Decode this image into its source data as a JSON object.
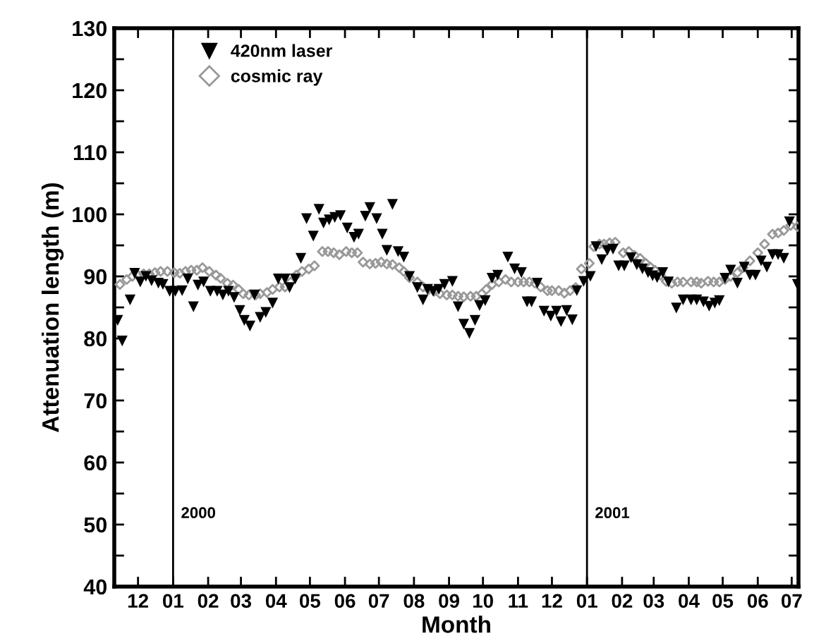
{
  "chart_data": {
    "type": "scatter",
    "xlabel": "Month",
    "ylabel": "Attenuation length (m)",
    "xlim": [
      "1999-11-10",
      "2001-07-07"
    ],
    "ylim": [
      40,
      130
    ],
    "xticks": [
      {
        "value": "1999-12-01",
        "label": "12"
      },
      {
        "value": "2000-01-01",
        "label": "01"
      },
      {
        "value": "2000-02-01",
        "label": "02"
      },
      {
        "value": "2000-03-01",
        "label": "03"
      },
      {
        "value": "2000-04-01",
        "label": "04"
      },
      {
        "value": "2000-05-01",
        "label": "05"
      },
      {
        "value": "2000-06-01",
        "label": "06"
      },
      {
        "value": "2000-07-01",
        "label": "07"
      },
      {
        "value": "2000-08-01",
        "label": "08"
      },
      {
        "value": "2000-09-01",
        "label": "09"
      },
      {
        "value": "2000-10-01",
        "label": "10"
      },
      {
        "value": "2000-11-01",
        "label": "11"
      },
      {
        "value": "2000-12-01",
        "label": "12"
      },
      {
        "value": "2001-01-01",
        "label": "01"
      },
      {
        "value": "2001-02-01",
        "label": "02"
      },
      {
        "value": "2001-03-01",
        "label": "03"
      },
      {
        "value": "2001-04-01",
        "label": "04"
      },
      {
        "value": "2001-05-01",
        "label": "05"
      },
      {
        "value": "2001-06-01",
        "label": "06"
      },
      {
        "value": "2001-07-01",
        "label": "07"
      }
    ],
    "yticks": [
      40,
      {
        "value": 45,
        "label": null
      },
      50,
      {
        "value": 55,
        "label": null
      },
      60,
      {
        "value": 65,
        "label": null
      },
      70,
      {
        "value": 75,
        "label": null
      },
      80,
      {
        "value": 85,
        "label": null
      },
      90,
      {
        "value": 95,
        "label": null
      },
      100,
      {
        "value": 105,
        "label": null
      },
      110,
      {
        "value": 115,
        "label": null
      },
      120,
      {
        "value": 125,
        "label": null
      },
      130
    ],
    "grid": false,
    "legend": "top left",
    "ref_lines": [
      {
        "axis": "x",
        "value": "2000-01-01",
        "label": "2000",
        "color": "#000000"
      },
      {
        "axis": "x",
        "value": "2001-01-01",
        "label": "2001",
        "color": "#000000"
      }
    ],
    "series": [
      {
        "name": "420nm laser",
        "color": "#000000",
        "marker": "triangle",
        "x": [
          "1999-11-13",
          "1999-11-17",
          "1999-11-24",
          "1999-11-28",
          "1999-12-03",
          "1999-12-08",
          "1999-12-13",
          "1999-12-19",
          "1999-12-23",
          "1999-12-29",
          "2000-01-03",
          "2000-01-09",
          "2000-01-14",
          "2000-01-19",
          "2000-01-23",
          "2000-01-28",
          "2000-02-03",
          "2000-02-09",
          "2000-02-14",
          "2000-02-19",
          "2000-02-24",
          "2000-02-29",
          "2000-03-04",
          "2000-03-09",
          "2000-03-13",
          "2000-03-18",
          "2000-03-23",
          "2000-03-29",
          "2000-04-03",
          "2000-04-09",
          "2000-04-13",
          "2000-04-18",
          "2000-04-23",
          "2000-04-28",
          "2000-05-04",
          "2000-05-09",
          "2000-05-13",
          "2000-05-18",
          "2000-05-23",
          "2000-05-28",
          "2000-06-03",
          "2000-06-09",
          "2000-06-13",
          "2000-06-19",
          "2000-06-23",
          "2000-06-29",
          "2000-07-04",
          "2000-07-08",
          "2000-07-13",
          "2000-07-18",
          "2000-07-23",
          "2000-07-28",
          "2000-08-04",
          "2000-08-09",
          "2000-08-13",
          "2000-08-18",
          "2000-08-23",
          "2000-08-28",
          "2000-09-04",
          "2000-09-09",
          "2000-09-14",
          "2000-09-19",
          "2000-09-24",
          "2000-09-28",
          "2000-10-03",
          "2000-10-09",
          "2000-10-14",
          "2000-10-23",
          "2000-10-29",
          "2000-11-04",
          "2000-11-09",
          "2000-11-13",
          "2000-11-18",
          "2000-11-24",
          "2000-11-30",
          "2000-12-05",
          "2000-12-09",
          "2000-12-14",
          "2000-12-19",
          "2000-12-23",
          "2000-12-29",
          "2001-01-04",
          "2001-01-09",
          "2001-01-14",
          "2001-01-19",
          "2001-01-24",
          "2001-01-29",
          "2001-02-03",
          "2001-02-09",
          "2001-02-14",
          "2001-02-19",
          "2001-02-24",
          "2001-02-28",
          "2001-03-04",
          "2001-03-09",
          "2001-03-14",
          "2001-03-21",
          "2001-03-27",
          "2001-04-03",
          "2001-04-08",
          "2001-04-14",
          "2001-04-19",
          "2001-04-24",
          "2001-04-28",
          "2001-05-03",
          "2001-05-08",
          "2001-05-14",
          "2001-05-20",
          "2001-05-25",
          "2001-05-30",
          "2001-06-04",
          "2001-06-09",
          "2001-06-14",
          "2001-06-19",
          "2001-06-24",
          "2001-06-29",
          "2001-07-06"
        ],
        "values": [
          82.9,
          79.6,
          86.2,
          90.5,
          89.1,
          90.0,
          89.3,
          88.9,
          88.7,
          87.6,
          87.6,
          87.7,
          89.6,
          85.1,
          88.6,
          89.1,
          87.6,
          87.6,
          87.0,
          87.6,
          86.6,
          84.5,
          82.9,
          82.0,
          87.0,
          83.4,
          84.2,
          85.7,
          89.6,
          89.6,
          88.2,
          89.6,
          92.9,
          99.3,
          96.5,
          100.8,
          98.6,
          99.1,
          99.5,
          99.8,
          97.8,
          96.3,
          96.8,
          99.7,
          101.1,
          99.3,
          96.8,
          94.2,
          101.6,
          94.0,
          93.1,
          90.0,
          88.2,
          86.2,
          87.9,
          87.6,
          87.9,
          88.7,
          89.2,
          85.1,
          82.3,
          80.8,
          82.9,
          85.3,
          86.1,
          89.7,
          90.2,
          93.1,
          91.2,
          90.6,
          85.9,
          85.9,
          88.9,
          84.4,
          83.6,
          84.4,
          82.7,
          84.5,
          83.0,
          87.7,
          89.2,
          90.0,
          94.8,
          92.7,
          94.2,
          94.4,
          91.7,
          91.7,
          93.0,
          91.9,
          91.2,
          90.6,
          90.1,
          89.8,
          90.6,
          89.1,
          84.9,
          86.2,
          86.2,
          86.2,
          85.9,
          85.2,
          85.7,
          86.1,
          89.7,
          91.0,
          88.9,
          91.5,
          90.2,
          90.2,
          92.5,
          91.5,
          93.5,
          93.5,
          92.9,
          98.8,
          88.7
        ]
      },
      {
        "name": "cosmic ray",
        "color": "#999999",
        "marker": "diamond",
        "x": [
          "1999-11-15",
          "1999-11-21",
          "1999-11-26",
          "1999-12-01",
          "1999-12-06",
          "1999-12-11",
          "1999-12-16",
          "1999-12-21",
          "1999-12-27",
          "2000-01-02",
          "2000-01-07",
          "2000-01-12",
          "2000-01-17",
          "2000-01-22",
          "2000-01-27",
          "2000-02-02",
          "2000-02-08",
          "2000-02-12",
          "2000-02-18",
          "2000-02-23",
          "2000-02-28",
          "2000-03-03",
          "2000-03-08",
          "2000-03-14",
          "2000-03-18",
          "2000-03-24",
          "2000-03-29",
          "2000-04-04",
          "2000-04-09",
          "2000-04-14",
          "2000-04-19",
          "2000-04-24",
          "2000-04-30",
          "2000-05-05",
          "2000-05-12",
          "2000-05-17",
          "2000-05-22",
          "2000-05-27",
          "2000-06-02",
          "2000-06-07",
          "2000-06-12",
          "2000-06-17",
          "2000-06-23",
          "2000-06-28",
          "2000-07-03",
          "2000-07-08",
          "2000-07-13",
          "2000-07-19",
          "2000-07-23",
          "2000-07-28",
          "2000-08-04",
          "2000-08-09",
          "2000-08-14",
          "2000-08-19",
          "2000-08-24",
          "2000-08-30",
          "2000-09-04",
          "2000-09-09",
          "2000-09-14",
          "2000-09-20",
          "2000-09-25",
          "2000-09-30",
          "2000-10-04",
          "2000-10-09",
          "2000-10-15",
          "2000-10-21",
          "2000-10-26",
          "2000-11-01",
          "2000-11-06",
          "2000-11-11",
          "2000-11-16",
          "2000-11-21",
          "2000-11-27",
          "2000-12-01",
          "2000-12-07",
          "2000-12-12",
          "2000-12-17",
          "2000-12-22",
          "2000-12-27",
          "2001-01-03",
          "2001-01-07",
          "2001-01-12",
          "2001-01-16",
          "2001-01-21",
          "2001-01-26",
          "2001-02-02",
          "2001-02-07",
          "2001-02-12",
          "2001-02-17",
          "2001-02-22",
          "2001-02-26",
          "2001-03-02",
          "2001-03-07",
          "2001-03-12",
          "2001-03-17",
          "2001-03-22",
          "2001-03-27",
          "2001-04-03",
          "2001-04-08",
          "2001-04-12",
          "2001-04-18",
          "2001-04-23",
          "2001-04-28",
          "2001-05-03",
          "2001-05-08",
          "2001-05-14",
          "2001-05-19",
          "2001-05-25",
          "2001-06-01",
          "2001-06-07",
          "2001-06-14",
          "2001-06-19",
          "2001-06-24",
          "2001-06-30",
          "2001-07-06"
        ],
        "values": [
          88.7,
          89.5,
          90.0,
          90.2,
          90.4,
          90.4,
          90.6,
          90.8,
          90.8,
          90.6,
          90.5,
          90.8,
          91.0,
          91.0,
          91.4,
          90.8,
          90.2,
          89.7,
          88.9,
          88.6,
          87.9,
          87.2,
          87.0,
          87.0,
          87.2,
          87.4,
          87.9,
          88.3,
          88.3,
          89.1,
          90.2,
          90.8,
          91.2,
          91.7,
          94.0,
          94.0,
          93.8,
          93.5,
          94.0,
          93.8,
          93.8,
          92.3,
          92.0,
          92.1,
          92.3,
          92.0,
          91.9,
          91.4,
          90.8,
          89.8,
          89.1,
          88.3,
          87.9,
          87.6,
          87.2,
          87.0,
          87.0,
          86.8,
          86.7,
          86.8,
          86.8,
          87.2,
          87.9,
          88.7,
          89.1,
          89.5,
          89.1,
          89.1,
          89.1,
          89.1,
          88.9,
          88.3,
          87.7,
          87.7,
          87.7,
          87.3,
          87.7,
          88.2,
          91.2,
          92.1,
          94.8,
          95.2,
          95.2,
          95.4,
          95.5,
          93.8,
          94.0,
          93.4,
          92.9,
          92.1,
          91.5,
          91.0,
          90.2,
          89.2,
          88.9,
          89.1,
          89.1,
          89.1,
          89.1,
          88.9,
          89.2,
          89.1,
          89.1,
          89.5,
          90.0,
          90.6,
          91.4,
          92.5,
          93.8,
          95.2,
          96.8,
          97.0,
          97.4,
          98.2,
          98.0
        ]
      }
    ]
  }
}
